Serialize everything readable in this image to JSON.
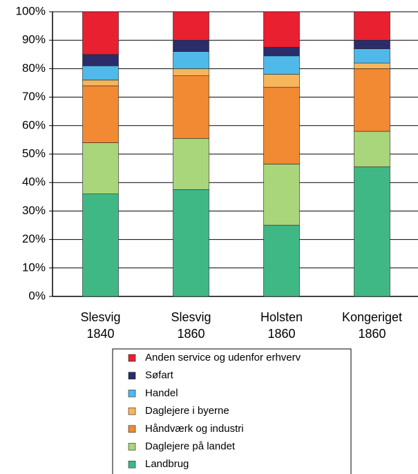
{
  "chart_data": {
    "type": "stacked_bar",
    "categories": [
      "Slesvig\n1840",
      "Slesvig\n1860",
      "Holsten\n1860",
      "Kongeriget\n1860"
    ],
    "series": [
      {
        "name": "Landbrug",
        "color": "#3fb886",
        "values": [
          36,
          37.5,
          25,
          45.5
        ]
      },
      {
        "name": "Daglejere på landet",
        "color": "#a9d57b",
        "values": [
          18,
          18,
          21.5,
          12.5
        ]
      },
      {
        "name": "Håndværk og industri",
        "color": "#f18a32",
        "values": [
          20,
          22,
          27,
          22
        ]
      },
      {
        "name": "Daglejere i byerne",
        "color": "#f7b55c",
        "values": [
          2,
          2.5,
          4.5,
          2
        ]
      },
      {
        "name": "Handel",
        "color": "#4fb9ea",
        "values": [
          5,
          6,
          6.5,
          5
        ]
      },
      {
        "name": "Søfart",
        "color": "#2b2d6a",
        "values": [
          4,
          4,
          3,
          3
        ]
      },
      {
        "name": "Anden service og udenfor erhverv",
        "color": "#e8202f",
        "values": [
          15,
          10,
          12.5,
          10
        ]
      }
    ],
    "ylim": [
      0,
      100
    ],
    "yticks": [
      {
        "value": 0,
        "label": "0%"
      },
      {
        "value": 10,
        "label": "10%"
      },
      {
        "value": 20,
        "label": "20%"
      },
      {
        "value": 30,
        "label": "30%"
      },
      {
        "value": 40,
        "label": "40%"
      },
      {
        "value": 50,
        "label": "50%"
      },
      {
        "value": 60,
        "label": "60%"
      },
      {
        "value": 70,
        "label": "70%"
      },
      {
        "value": 80,
        "label": "80%"
      },
      {
        "value": 90,
        "label": "90%"
      },
      {
        "value": 100,
        "label": "100%"
      }
    ],
    "grid": true
  }
}
